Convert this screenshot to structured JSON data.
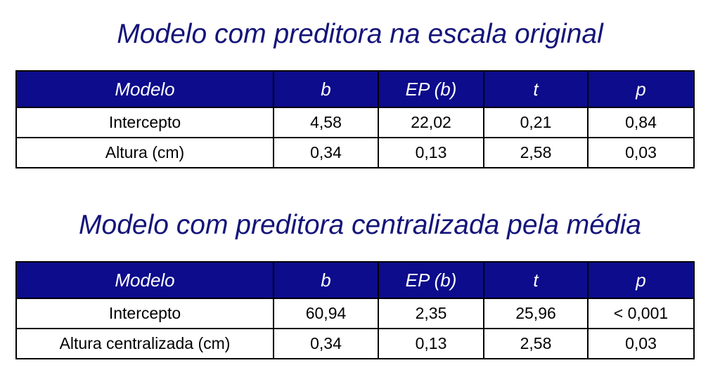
{
  "tables": [
    {
      "title": "Modelo com preditora na escala original",
      "header": [
        "Modelo",
        "b",
        "EP (b)",
        "t",
        "p"
      ],
      "rows": [
        [
          "Intercepto",
          "4,58",
          "22,02",
          "0,21",
          "0,84"
        ],
        [
          "Altura (cm)",
          "0,34",
          "0,13",
          "2,58",
          "0,03"
        ]
      ]
    },
    {
      "title": "Modelo com preditora centralizada pela média",
      "header": [
        "Modelo",
        "b",
        "EP (b)",
        "t",
        "p"
      ],
      "rows": [
        [
          "Intercepto",
          "60,94",
          "2,35",
          "25,96",
          "< 0,001"
        ],
        [
          "Altura centralizada (cm)",
          "0,34",
          "0,13",
          "2,58",
          "0,03"
        ]
      ]
    }
  ]
}
